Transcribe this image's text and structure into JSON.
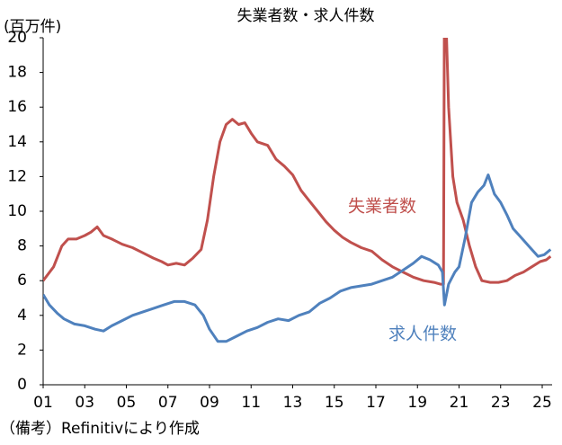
{
  "chart_data": {
    "type": "line",
    "title": "失業者数・求人件数",
    "y_label": "(百万件)",
    "note": "（備考）Refinitivにより作成",
    "xlim": [
      2001,
      2025.4
    ],
    "xticks": [
      {
        "value": 2001,
        "label": "01"
      },
      {
        "value": 2003,
        "label": "03"
      },
      {
        "value": 2005,
        "label": "05"
      },
      {
        "value": 2007,
        "label": "07"
      },
      {
        "value": 2009,
        "label": "09"
      },
      {
        "value": 2011,
        "label": "11"
      },
      {
        "value": 2013,
        "label": "13"
      },
      {
        "value": 2015,
        "label": "15"
      },
      {
        "value": 2017,
        "label": "17"
      },
      {
        "value": 2019,
        "label": "19"
      },
      {
        "value": 2021,
        "label": "21"
      },
      {
        "value": 2023,
        "label": "23"
      },
      {
        "value": 2025,
        "label": "25"
      }
    ],
    "ylim": [
      0,
      20
    ],
    "yticks": [
      0,
      2,
      4,
      6,
      8,
      10,
      12,
      14,
      16,
      18,
      20
    ],
    "grid": false,
    "series": [
      {
        "name": "失業者数",
        "color": "#c0504d",
        "x": [
          2001.0,
          2001.5,
          2001.9,
          2002.2,
          2002.6,
          2003.0,
          2003.3,
          2003.6,
          2003.9,
          2004.3,
          2004.8,
          2005.3,
          2005.8,
          2006.3,
          2006.7,
          2007.0,
          2007.4,
          2007.8,
          2008.2,
          2008.6,
          2008.9,
          2009.2,
          2009.5,
          2009.8,
          2010.1,
          2010.4,
          2010.7,
          2011.0,
          2011.3,
          2011.8,
          2012.2,
          2012.6,
          2013.0,
          2013.4,
          2013.8,
          2014.2,
          2014.6,
          2015.0,
          2015.4,
          2015.8,
          2016.3,
          2016.8,
          2017.3,
          2017.8,
          2018.3,
          2018.8,
          2019.3,
          2019.8,
          2020.1,
          2020.25,
          2020.3,
          2020.4,
          2020.5,
          2020.7,
          2020.9,
          2021.2,
          2021.5,
          2021.8,
          2022.1,
          2022.5,
          2022.9,
          2023.3,
          2023.7,
          2024.1,
          2024.5,
          2024.9,
          2025.2,
          2025.4
        ],
        "values": [
          6.0,
          6.8,
          8.0,
          8.4,
          8.4,
          8.6,
          8.8,
          9.1,
          8.6,
          8.4,
          8.1,
          7.9,
          7.6,
          7.3,
          7.1,
          6.9,
          7.0,
          6.9,
          7.3,
          7.8,
          9.5,
          12.0,
          14.0,
          15.0,
          15.3,
          15.0,
          15.1,
          14.5,
          14.0,
          13.8,
          13.0,
          12.6,
          12.1,
          11.2,
          10.6,
          10.0,
          9.4,
          8.9,
          8.5,
          8.2,
          7.9,
          7.7,
          7.2,
          6.8,
          6.5,
          6.2,
          6.0,
          5.9,
          5.8,
          5.8,
          23.0,
          20.0,
          16.0,
          12.0,
          10.5,
          9.5,
          8.0,
          6.8,
          6.0,
          5.9,
          5.9,
          6.0,
          6.3,
          6.5,
          6.8,
          7.1,
          7.2,
          7.4
        ]
      },
      {
        "name": "求人件数",
        "color": "#4f81bd",
        "x": [
          2001.0,
          2001.3,
          2001.7,
          2002.0,
          2002.5,
          2003.0,
          2003.5,
          2003.9,
          2004.3,
          2004.8,
          2005.3,
          2005.8,
          2006.3,
          2006.8,
          2007.3,
          2007.8,
          2008.3,
          2008.7,
          2009.0,
          2009.4,
          2009.8,
          2010.3,
          2010.8,
          2011.3,
          2011.8,
          2012.3,
          2012.8,
          2013.3,
          2013.8,
          2014.3,
          2014.8,
          2015.3,
          2015.8,
          2016.3,
          2016.8,
          2017.3,
          2017.8,
          2018.3,
          2018.8,
          2019.2,
          2019.6,
          2020.0,
          2020.2,
          2020.3,
          2020.5,
          2020.8,
          2021.0,
          2021.3,
          2021.6,
          2021.9,
          2022.2,
          2022.4,
          2022.7,
          2023.0,
          2023.3,
          2023.6,
          2023.9,
          2024.2,
          2024.5,
          2024.8,
          2025.1,
          2025.4
        ],
        "values": [
          5.2,
          4.6,
          4.1,
          3.8,
          3.5,
          3.4,
          3.2,
          3.1,
          3.4,
          3.7,
          4.0,
          4.2,
          4.4,
          4.6,
          4.8,
          4.8,
          4.6,
          4.0,
          3.2,
          2.5,
          2.5,
          2.8,
          3.1,
          3.3,
          3.6,
          3.8,
          3.7,
          4.0,
          4.2,
          4.7,
          5.0,
          5.4,
          5.6,
          5.7,
          5.8,
          6.0,
          6.2,
          6.6,
          7.0,
          7.4,
          7.2,
          6.9,
          6.5,
          4.6,
          5.8,
          6.5,
          6.8,
          8.5,
          10.5,
          11.1,
          11.5,
          12.1,
          11.0,
          10.5,
          9.8,
          9.0,
          8.6,
          8.2,
          7.8,
          7.4,
          7.5,
          7.8
        ]
      }
    ]
  }
}
